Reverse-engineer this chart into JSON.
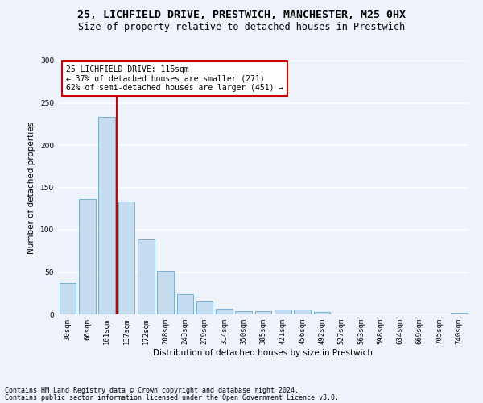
{
  "title_line1": "25, LICHFIELD DRIVE, PRESTWICH, MANCHESTER, M25 0HX",
  "title_line2": "Size of property relative to detached houses in Prestwich",
  "xlabel": "Distribution of detached houses by size in Prestwich",
  "ylabel": "Number of detached properties",
  "categories": [
    "30sqm",
    "66sqm",
    "101sqm",
    "137sqm",
    "172sqm",
    "208sqm",
    "243sqm",
    "279sqm",
    "314sqm",
    "350sqm",
    "385sqm",
    "421sqm",
    "456sqm",
    "492sqm",
    "527sqm",
    "563sqm",
    "598sqm",
    "634sqm",
    "669sqm",
    "705sqm",
    "740sqm"
  ],
  "values": [
    37,
    136,
    233,
    133,
    89,
    51,
    24,
    15,
    7,
    4,
    4,
    6,
    6,
    3,
    0,
    0,
    0,
    0,
    0,
    0,
    2
  ],
  "bar_color": "#c6dcef",
  "bar_edge_color": "#7aafd4",
  "annotation_text": "25 LICHFIELD DRIVE: 116sqm\n← 37% of detached houses are smaller (271)\n62% of semi-detached houses are larger (451) →",
  "annotation_box_facecolor": "#ffffff",
  "annotation_box_edgecolor": "#cc0000",
  "highlight_line_color": "#cc0000",
  "ylim": [
    0,
    300
  ],
  "yticks": [
    0,
    50,
    100,
    150,
    200,
    250,
    300
  ],
  "footer_line1": "Contains HM Land Registry data © Crown copyright and database right 2024.",
  "footer_line2": "Contains public sector information licensed under the Open Government Licence v3.0.",
  "background_color": "#eef2fa",
  "grid_color": "#ffffff",
  "title_fontsize": 9.5,
  "subtitle_fontsize": 8.5,
  "axis_label_fontsize": 7.5,
  "tick_fontsize": 6.5,
  "annotation_fontsize": 7,
  "footer_fontsize": 6
}
